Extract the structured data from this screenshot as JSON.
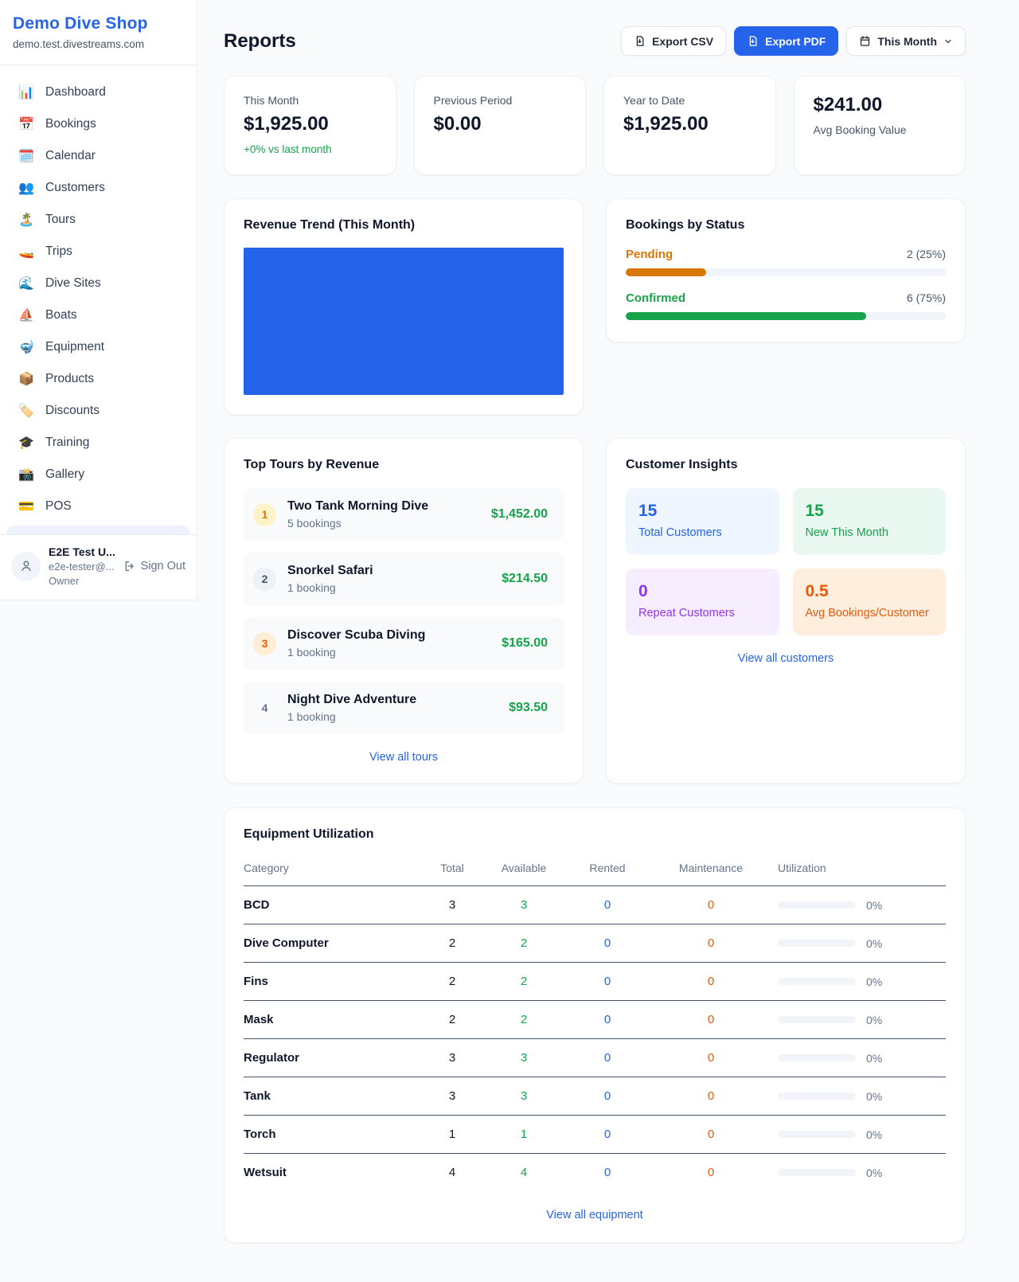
{
  "brand": {
    "name": "Demo Dive Shop",
    "domain": "demo.test.divestreams.com"
  },
  "sidebar": {
    "items": [
      {
        "label": "Dashboard",
        "icon": "bar-chart",
        "glyph": "📊"
      },
      {
        "label": "Bookings",
        "icon": "calendar-date",
        "glyph": "📅"
      },
      {
        "label": "Calendar",
        "icon": "calendar-pad",
        "glyph": "🗓️"
      },
      {
        "label": "Customers",
        "icon": "people",
        "glyph": "👥"
      },
      {
        "label": "Tours",
        "icon": "island",
        "glyph": "🏝️"
      },
      {
        "label": "Trips",
        "icon": "speedboat",
        "glyph": "🚤"
      },
      {
        "label": "Dive Sites",
        "icon": "wave",
        "glyph": "🌊"
      },
      {
        "label": "Boats",
        "icon": "sailboat",
        "glyph": "⛵"
      },
      {
        "label": "Equipment",
        "icon": "dive-mask",
        "glyph": "🤿"
      },
      {
        "label": "Products",
        "icon": "package",
        "glyph": "📦"
      },
      {
        "label": "Discounts",
        "icon": "tag",
        "glyph": "🏷️"
      },
      {
        "label": "Training",
        "icon": "grad-cap",
        "glyph": "🎓"
      },
      {
        "label": "Gallery",
        "icon": "camera",
        "glyph": "📸"
      },
      {
        "label": "POS",
        "icon": "credit-card",
        "glyph": "💳"
      }
    ]
  },
  "user": {
    "name": "E2E Test U...",
    "email": "e2e-tester@...",
    "role": "Owner",
    "sign_out": "Sign Out"
  },
  "header": {
    "title": "Reports",
    "export_csv": "Export CSV",
    "export_pdf": "Export PDF",
    "period": "This Month"
  },
  "stats": [
    {
      "label": "This Month",
      "value": "$1,925.00",
      "delta": "+0% vs last month"
    },
    {
      "label": "Previous Period",
      "value": "$0.00"
    },
    {
      "label": "Year to Date",
      "value": "$1,925.00"
    },
    {
      "label": "Avg Booking Value",
      "value": "$241.00"
    }
  ],
  "revenue_trend": {
    "title": "Revenue Trend (This Month)",
    "bar_color": "#2563eb"
  },
  "bookings_by_status": {
    "title": "Bookings by Status",
    "rows": [
      {
        "label": "Pending",
        "count": "2 (25%)",
        "pct": 25,
        "color": "#d97706"
      },
      {
        "label": "Confirmed",
        "count": "6 (75%)",
        "pct": 75,
        "color": "#16a34a"
      }
    ]
  },
  "top_tours": {
    "title": "Top Tours by Revenue",
    "rows": [
      {
        "rank": "1",
        "name": "Two Tank Morning Dive",
        "bookings": "5 bookings",
        "amount": "$1,452.00"
      },
      {
        "rank": "2",
        "name": "Snorkel Safari",
        "bookings": "1 booking",
        "amount": "$214.50"
      },
      {
        "rank": "3",
        "name": "Discover Scuba Diving",
        "bookings": "1 booking",
        "amount": "$165.00"
      },
      {
        "rank": "4",
        "name": "Night Dive Adventure",
        "bookings": "1 booking",
        "amount": "$93.50"
      }
    ],
    "link": "View all tours"
  },
  "customer_insights": {
    "title": "Customer Insights",
    "tiles": [
      {
        "value": "15",
        "label": "Total Customers",
        "fg": "#2563eb",
        "bg": "#eff6ff"
      },
      {
        "value": "15",
        "label": "New This Month",
        "fg": "#16a34a",
        "bg": "#e9f8f0"
      },
      {
        "value": "0",
        "label": "Repeat Customers",
        "fg": "#9333ea",
        "bg": "#f6eefe"
      },
      {
        "value": "0.5",
        "label": "Avg Bookings/Customer",
        "fg": "#ea580c",
        "bg": "#feeedd"
      }
    ],
    "link": "View all customers"
  },
  "equipment": {
    "title": "Equipment Utilization",
    "columns": [
      "Category",
      "Total",
      "Available",
      "Rented",
      "Maintenance",
      "Utilization"
    ],
    "rows": [
      {
        "category": "BCD",
        "total": "3",
        "available": "3",
        "rented": "0",
        "maintenance": "0",
        "utilization": "0%",
        "pct": 0
      },
      {
        "category": "Dive Computer",
        "total": "2",
        "available": "2",
        "rented": "0",
        "maintenance": "0",
        "utilization": "0%",
        "pct": 0
      },
      {
        "category": "Fins",
        "total": "2",
        "available": "2",
        "rented": "0",
        "maintenance": "0",
        "utilization": "0%",
        "pct": 0
      },
      {
        "category": "Mask",
        "total": "2",
        "available": "2",
        "rented": "0",
        "maintenance": "0",
        "utilization": "0%",
        "pct": 0
      },
      {
        "category": "Regulator",
        "total": "3",
        "available": "3",
        "rented": "0",
        "maintenance": "0",
        "utilization": "0%",
        "pct": 0
      },
      {
        "category": "Tank",
        "total": "3",
        "available": "3",
        "rented": "0",
        "maintenance": "0",
        "utilization": "0%",
        "pct": 0
      },
      {
        "category": "Torch",
        "total": "1",
        "available": "1",
        "rented": "0",
        "maintenance": "0",
        "utilization": "0%",
        "pct": 0
      },
      {
        "category": "Wetsuit",
        "total": "4",
        "available": "4",
        "rented": "0",
        "maintenance": "0",
        "utilization": "0%",
        "pct": 0
      }
    ],
    "link": "View all equipment"
  }
}
